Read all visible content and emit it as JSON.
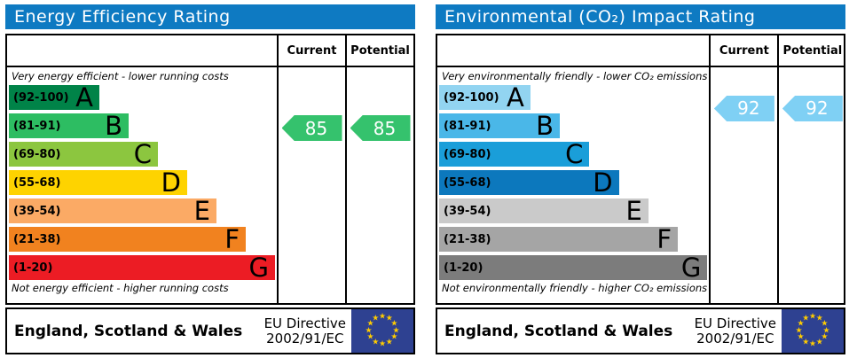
{
  "colors": {
    "header_bg": "#0e7ac2",
    "border": "#000000",
    "eu_flag_bg": "#2e4191",
    "eu_star": "#ffcc00"
  },
  "charts": [
    {
      "title": "Energy Efficiency Rating",
      "columns": {
        "current": "Current",
        "potential": "Potential"
      },
      "top_caption": "Very energy efficient - lower running costs",
      "bottom_caption": "Not energy efficient - higher running costs",
      "bands": [
        {
          "range_label": "(92-100)",
          "letter": "A",
          "low": 92,
          "high": 100,
          "color": "#008348"
        },
        {
          "range_label": "(81-91)",
          "letter": "B",
          "low": 81,
          "high": 91,
          "color": "#2dbd62"
        },
        {
          "range_label": "(69-80)",
          "letter": "C",
          "low": 69,
          "high": 80,
          "color": "#8cc63f"
        },
        {
          "range_label": "(55-68)",
          "letter": "D",
          "low": 55,
          "high": 68,
          "color": "#fed300"
        },
        {
          "range_label": "(39-54)",
          "letter": "E",
          "low": 39,
          "high": 54,
          "color": "#fbaa65"
        },
        {
          "range_label": "(21-38)",
          "letter": "F",
          "low": 21,
          "high": 38,
          "color": "#f1821f"
        },
        {
          "range_label": "(1-20)",
          "letter": "G",
          "low": 1,
          "high": 20,
          "color": "#ec1c24"
        }
      ],
      "current": {
        "value": 85,
        "color": "#35c26d"
      },
      "potential": {
        "value": 85,
        "color": "#35c26d"
      },
      "footer": {
        "region": "England, Scotland & Wales",
        "directive_line1": "EU Directive",
        "directive_line2": "2002/91/EC"
      }
    },
    {
      "title": "Environmental (CO₂) Impact Rating",
      "columns": {
        "current": "Current",
        "potential": "Potential"
      },
      "top_caption": "Very environmentally friendly - lower CO₂ emissions",
      "bottom_caption": "Not environmentally friendly - higher CO₂ emissions",
      "bands": [
        {
          "range_label": "(92-100)",
          "letter": "A",
          "low": 92,
          "high": 100,
          "color": "#92d4f1"
        },
        {
          "range_label": "(81-91)",
          "letter": "B",
          "low": 81,
          "high": 91,
          "color": "#4ab7e8"
        },
        {
          "range_label": "(69-80)",
          "letter": "C",
          "low": 69,
          "high": 80,
          "color": "#1a9ed9"
        },
        {
          "range_label": "(55-68)",
          "letter": "D",
          "low": 55,
          "high": 68,
          "color": "#0c78bd"
        },
        {
          "range_label": "(39-54)",
          "letter": "E",
          "low": 39,
          "high": 54,
          "color": "#cacaca"
        },
        {
          "range_label": "(21-38)",
          "letter": "F",
          "low": 21,
          "high": 38,
          "color": "#a5a5a5"
        },
        {
          "range_label": "(1-20)",
          "letter": "G",
          "low": 1,
          "high": 20,
          "color": "#7c7c7c"
        }
      ],
      "current": {
        "value": 92,
        "color": "#7fd0f4"
      },
      "potential": {
        "value": 92,
        "color": "#7fd0f4"
      },
      "footer": {
        "region": "England, Scotland & Wales",
        "directive_line1": "EU Directive",
        "directive_line2": "2002/91/EC"
      }
    }
  ],
  "chart_data": [
    {
      "type": "bar",
      "orientation": "horizontal",
      "title": "Energy Efficiency Rating",
      "categories": [
        "A (92-100)",
        "B (81-91)",
        "C (69-80)",
        "D (55-68)",
        "E (39-54)",
        "F (21-38)",
        "G (1-20)"
      ],
      "scale": [
        1,
        100
      ],
      "series": [
        {
          "name": "Current",
          "values": [
            85
          ]
        },
        {
          "name": "Potential",
          "values": [
            85
          ]
        }
      ],
      "current_rating": {
        "value": 85,
        "band": "B"
      },
      "potential_rating": {
        "value": 85,
        "band": "B"
      },
      "annotations": [
        "Very energy efficient - lower running costs",
        "Not energy efficient - higher running costs"
      ],
      "footnote": "England, Scotland & Wales — EU Directive 2002/91/EC"
    },
    {
      "type": "bar",
      "orientation": "horizontal",
      "title": "Environmental (CO₂) Impact Rating",
      "categories": [
        "A (92-100)",
        "B (81-91)",
        "C (69-80)",
        "D (55-68)",
        "E (39-54)",
        "F (21-38)",
        "G (1-20)"
      ],
      "scale": [
        1,
        100
      ],
      "series": [
        {
          "name": "Current",
          "values": [
            92
          ]
        },
        {
          "name": "Potential",
          "values": [
            92
          ]
        }
      ],
      "current_rating": {
        "value": 92,
        "band": "A"
      },
      "potential_rating": {
        "value": 92,
        "band": "A"
      },
      "annotations": [
        "Very environmentally friendly - lower CO₂ emissions",
        "Not environmentally friendly - higher CO₂ emissions"
      ],
      "footnote": "England, Scotland & Wales — EU Directive 2002/91/EC"
    }
  ]
}
